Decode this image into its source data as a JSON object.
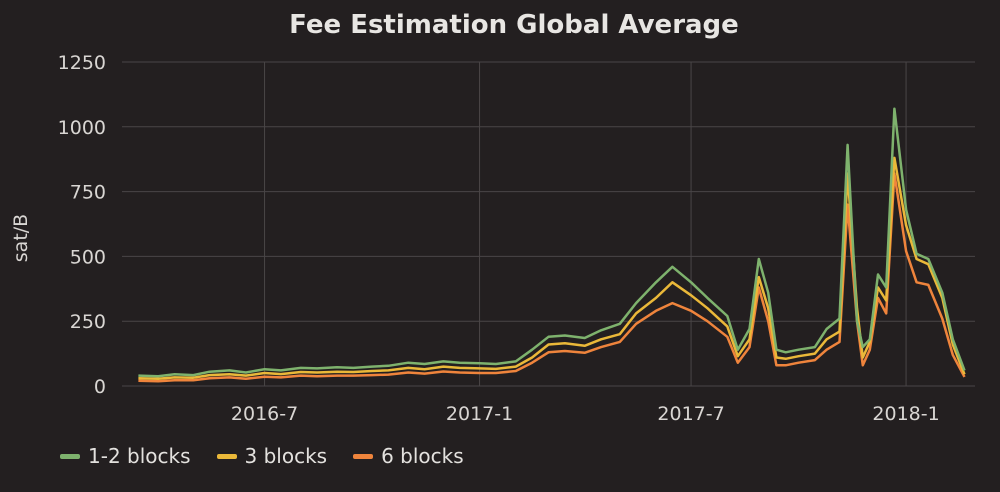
{
  "chart_data": {
    "type": "line",
    "title": "Fee Estimation Global Average",
    "ylabel": "sat/B",
    "xlabel": "",
    "x_ticks": [
      "2016-7",
      "2017-1",
      "2017-7",
      "2018-1"
    ],
    "y_ticks": [
      "0",
      "250",
      "500",
      "750",
      "1000",
      "1250"
    ],
    "xlim": [
      "2016-03-01",
      "2018-03-01"
    ],
    "ylim": [
      0,
      1250
    ],
    "grid": true,
    "legend_position": "bottom-left",
    "x": [
      "2016-03-15",
      "2016-04-01",
      "2016-04-15",
      "2016-05-01",
      "2016-05-15",
      "2016-06-01",
      "2016-06-15",
      "2016-07-01",
      "2016-07-15",
      "2016-08-01",
      "2016-08-15",
      "2016-09-01",
      "2016-09-15",
      "2016-10-01",
      "2016-10-15",
      "2016-11-01",
      "2016-11-15",
      "2016-12-01",
      "2016-12-15",
      "2017-01-01",
      "2017-01-15",
      "2017-02-01",
      "2017-02-15",
      "2017-03-01",
      "2017-03-15",
      "2017-04-01",
      "2017-04-15",
      "2017-05-01",
      "2017-05-15",
      "2017-06-01",
      "2017-06-15",
      "2017-07-01",
      "2017-07-15",
      "2017-08-01",
      "2017-08-10",
      "2017-08-20",
      "2017-08-28",
      "2017-09-05",
      "2017-09-12",
      "2017-09-20",
      "2017-10-01",
      "2017-10-15",
      "2017-10-25",
      "2017-11-05",
      "2017-11-12",
      "2017-11-20",
      "2017-11-25",
      "2017-12-01",
      "2017-12-08",
      "2017-12-15",
      "2017-12-22",
      "2018-01-01",
      "2018-01-10",
      "2018-01-20",
      "2018-02-01",
      "2018-02-10",
      "2018-02-20"
    ],
    "series": [
      {
        "name": "1-2 blocks",
        "color": "#7eb26d",
        "values": [
          40,
          38,
          45,
          42,
          55,
          60,
          52,
          65,
          60,
          70,
          68,
          72,
          70,
          75,
          78,
          90,
          85,
          95,
          90,
          88,
          85,
          95,
          140,
          190,
          195,
          185,
          215,
          240,
          320,
          400,
          460,
          400,
          340,
          270,
          140,
          220,
          490,
          360,
          140,
          130,
          140,
          150,
          220,
          260,
          930,
          250,
          150,
          180,
          430,
          380,
          1070,
          680,
          510,
          490,
          360,
          180,
          60
        ]
      },
      {
        "name": "3 blocks",
        "color": "#eab839",
        "values": [
          30,
          28,
          33,
          32,
          42,
          45,
          40,
          50,
          46,
          54,
          52,
          55,
          54,
          58,
          60,
          70,
          65,
          75,
          70,
          68,
          66,
          75,
          110,
          160,
          165,
          155,
          180,
          200,
          280,
          340,
          400,
          350,
          300,
          230,
          115,
          180,
          420,
          300,
          110,
          105,
          115,
          125,
          180,
          210,
          820,
          300,
          110,
          170,
          380,
          330,
          880,
          620,
          490,
          470,
          340,
          160,
          45
        ]
      },
      {
        "name": "6 blocks",
        "color": "#ef843c",
        "values": [
          20,
          18,
          22,
          22,
          30,
          33,
          28,
          36,
          33,
          40,
          38,
          40,
          40,
          42,
          44,
          52,
          48,
          56,
          52,
          50,
          50,
          58,
          90,
          130,
          135,
          128,
          150,
          170,
          240,
          290,
          320,
          290,
          250,
          190,
          90,
          150,
          380,
          250,
          80,
          80,
          90,
          100,
          140,
          170,
          700,
          250,
          80,
          140,
          340,
          280,
          820,
          520,
          400,
          390,
          260,
          120,
          35
        ]
      }
    ]
  }
}
